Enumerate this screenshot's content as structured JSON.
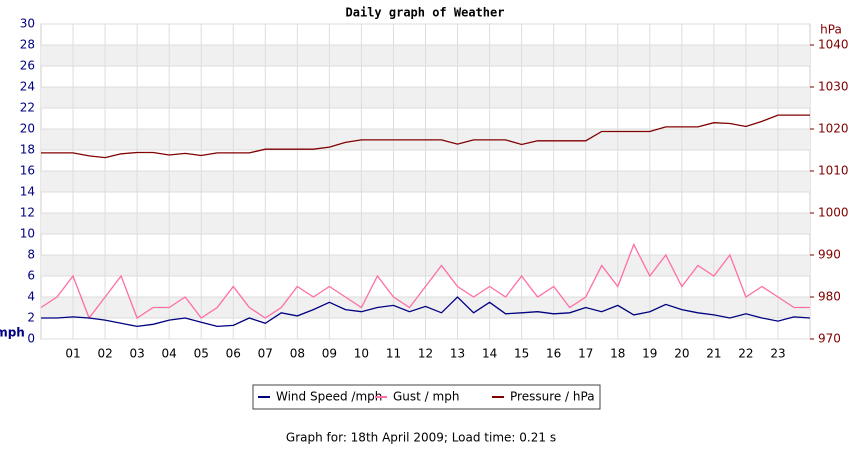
{
  "chart_data": {
    "type": "line",
    "title": "Daily graph of Weather",
    "y_label": "mph",
    "y2_label": "hPa",
    "footer": "Graph for: 18th April 2009; Load time: 0.21 s",
    "x": [
      0,
      0.5,
      1,
      1.5,
      2,
      2.5,
      3,
      3.5,
      4,
      4.5,
      5,
      5.5,
      6,
      6.5,
      7,
      7.5,
      8,
      8.5,
      9,
      9.5,
      10,
      10.5,
      11,
      11.5,
      12,
      12.5,
      13,
      13.5,
      14,
      14.5,
      15,
      15.5,
      16,
      16.5,
      17,
      17.5,
      18,
      18.5,
      19,
      19.5,
      20,
      20.5,
      21,
      21.5,
      22,
      22.5,
      23,
      23.5,
      24
    ],
    "xlim": [
      0,
      24
    ],
    "xticks": [
      {
        "value": 1,
        "label": "01"
      },
      {
        "value": 2,
        "label": "02"
      },
      {
        "value": 3,
        "label": "03"
      },
      {
        "value": 4,
        "label": "04"
      },
      {
        "value": 5,
        "label": "05"
      },
      {
        "value": 6,
        "label": "06"
      },
      {
        "value": 7,
        "label": "07"
      },
      {
        "value": 8,
        "label": "08"
      },
      {
        "value": 9,
        "label": "09"
      },
      10,
      11,
      12,
      13,
      14,
      15,
      16,
      17,
      18,
      19,
      20,
      21,
      22,
      23
    ],
    "ylim": [
      0,
      30
    ],
    "yticks": [
      0,
      2,
      4,
      6,
      8,
      10,
      12,
      14,
      16,
      18,
      20,
      22,
      24,
      26,
      28,
      30
    ],
    "y2lim": [
      970,
      1045
    ],
    "y2ticks": [
      970,
      980,
      990,
      1000,
      1010,
      1020,
      1030,
      1040
    ],
    "grid": true,
    "legend": "bottom",
    "series": [
      {
        "name": "Wind Speed /mph",
        "color": "#000080",
        "values": [
          2,
          2,
          2.1,
          2,
          1.8,
          1.5,
          1.2,
          1.4,
          1.8,
          2,
          1.6,
          1.2,
          1.3,
          2,
          1.5,
          2.5,
          2.2,
          2.8,
          3.5,
          2.8,
          2.6,
          3,
          3.2,
          2.6,
          3.1,
          2.5,
          4,
          2.5,
          3.5,
          2.4,
          2.5,
          2.6,
          2.4,
          2.5,
          3,
          2.6,
          3.2,
          2.3,
          2.6,
          3.3,
          2.8,
          2.5,
          2.3,
          2,
          2.4,
          2,
          1.7,
          2.1,
          2
        ]
      },
      {
        "name": "Gust / mph",
        "color": "#ff6ea6",
        "values": [
          3,
          4,
          6,
          2,
          4,
          6,
          2,
          3,
          3,
          4,
          2,
          3,
          5,
          3,
          2,
          3,
          5,
          4,
          5,
          4,
          3,
          6,
          4,
          3,
          5,
          7,
          5,
          4,
          5,
          4,
          6,
          4,
          5,
          3,
          4,
          7,
          5,
          9,
          6,
          8,
          5,
          7,
          6,
          8,
          4,
          5,
          4,
          3,
          3
        ]
      },
      {
        "name": "Pressure / hPa",
        "color": "#800000",
        "axis": "y2",
        "values": [
          1014.3,
          1014.3,
          1014.3,
          1013.6,
          1013.2,
          1014.1,
          1014.4,
          1014.4,
          1013.8,
          1014.2,
          1013.7,
          1014.3,
          1014.3,
          1014.3,
          1015.2,
          1015.2,
          1015.2,
          1015.2,
          1015.7,
          1016.8,
          1017.4,
          1017.4,
          1017.4,
          1017.4,
          1017.4,
          1017.4,
          1016.4,
          1017.4,
          1017.4,
          1017.4,
          1016.3,
          1017.2,
          1017.2,
          1017.2,
          1017.2,
          1019.4,
          1019.4,
          1019.4,
          1019.4,
          1020.5,
          1020.5,
          1020.5,
          1021.5,
          1021.3,
          1020.6,
          1021.8,
          1023.3,
          1023.3,
          1023.3
        ]
      }
    ]
  }
}
